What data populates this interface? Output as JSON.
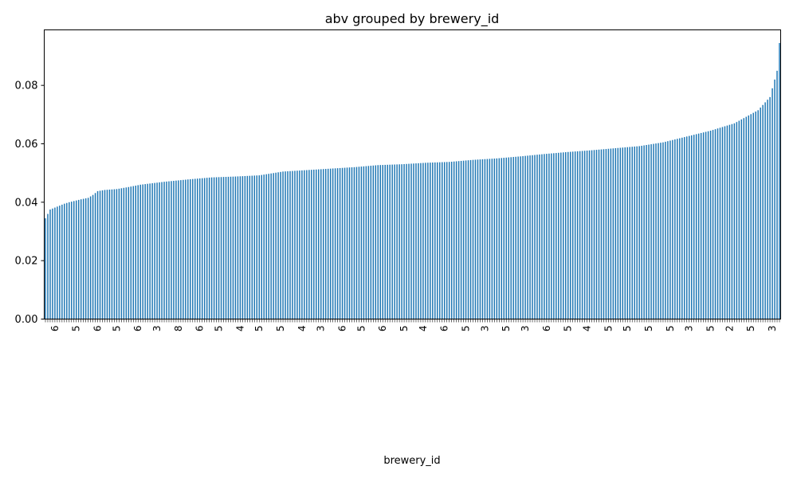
{
  "chart_data": {
    "type": "bar",
    "title": "abv grouped by brewery_id",
    "xlabel": "brewery_id",
    "ylabel": "",
    "ylim": [
      0,
      0.099
    ],
    "yticks": [
      0.0,
      0.02,
      0.04,
      0.06,
      0.08
    ],
    "ytick_labels": [
      "0.00",
      "0.02",
      "0.04",
      "0.06",
      "0.08"
    ],
    "bar_color": "#1f77b4",
    "grid": false,
    "sorted": "ascending",
    "bar_count": 310,
    "value_profile": [
      [
        0,
        0.0345
      ],
      [
        2,
        0.0375
      ],
      [
        5,
        0.0385
      ],
      [
        8,
        0.0395
      ],
      [
        10,
        0.04
      ],
      [
        15,
        0.041
      ],
      [
        18,
        0.0415
      ],
      [
        20,
        0.0425
      ],
      [
        22,
        0.0438
      ],
      [
        25,
        0.0442
      ],
      [
        30,
        0.0445
      ],
      [
        35,
        0.0452
      ],
      [
        40,
        0.046
      ],
      [
        45,
        0.0465
      ],
      [
        50,
        0.047
      ],
      [
        60,
        0.0478
      ],
      [
        70,
        0.0485
      ],
      [
        80,
        0.0488
      ],
      [
        90,
        0.0492
      ],
      [
        100,
        0.0505
      ],
      [
        110,
        0.051
      ],
      [
        120,
        0.0515
      ],
      [
        130,
        0.052
      ],
      [
        140,
        0.0527
      ],
      [
        150,
        0.053
      ],
      [
        160,
        0.0535
      ],
      [
        170,
        0.0538
      ],
      [
        180,
        0.0545
      ],
      [
        190,
        0.055
      ],
      [
        200,
        0.0557
      ],
      [
        210,
        0.0565
      ],
      [
        220,
        0.0572
      ],
      [
        230,
        0.0578
      ],
      [
        240,
        0.0585
      ],
      [
        250,
        0.0592
      ],
      [
        260,
        0.0605
      ],
      [
        270,
        0.0625
      ],
      [
        280,
        0.0645
      ],
      [
        290,
        0.067
      ],
      [
        300,
        0.0715
      ],
      [
        305,
        0.076
      ],
      [
        308,
        0.085
      ],
      [
        309,
        0.0945
      ]
    ],
    "x_tick_labels_visible": [
      "6",
      "5",
      "6",
      "5",
      "6",
      "3",
      "8",
      "6",
      "5",
      "4",
      "5",
      "5",
      "4",
      "3",
      "6",
      "5",
      "6",
      "5",
      "4",
      "6",
      "5",
      "3",
      "5",
      "3",
      "6",
      "5",
      "4",
      "5",
      "5",
      "5",
      "5",
      "3",
      "5",
      "2",
      "5",
      "3"
    ]
  }
}
